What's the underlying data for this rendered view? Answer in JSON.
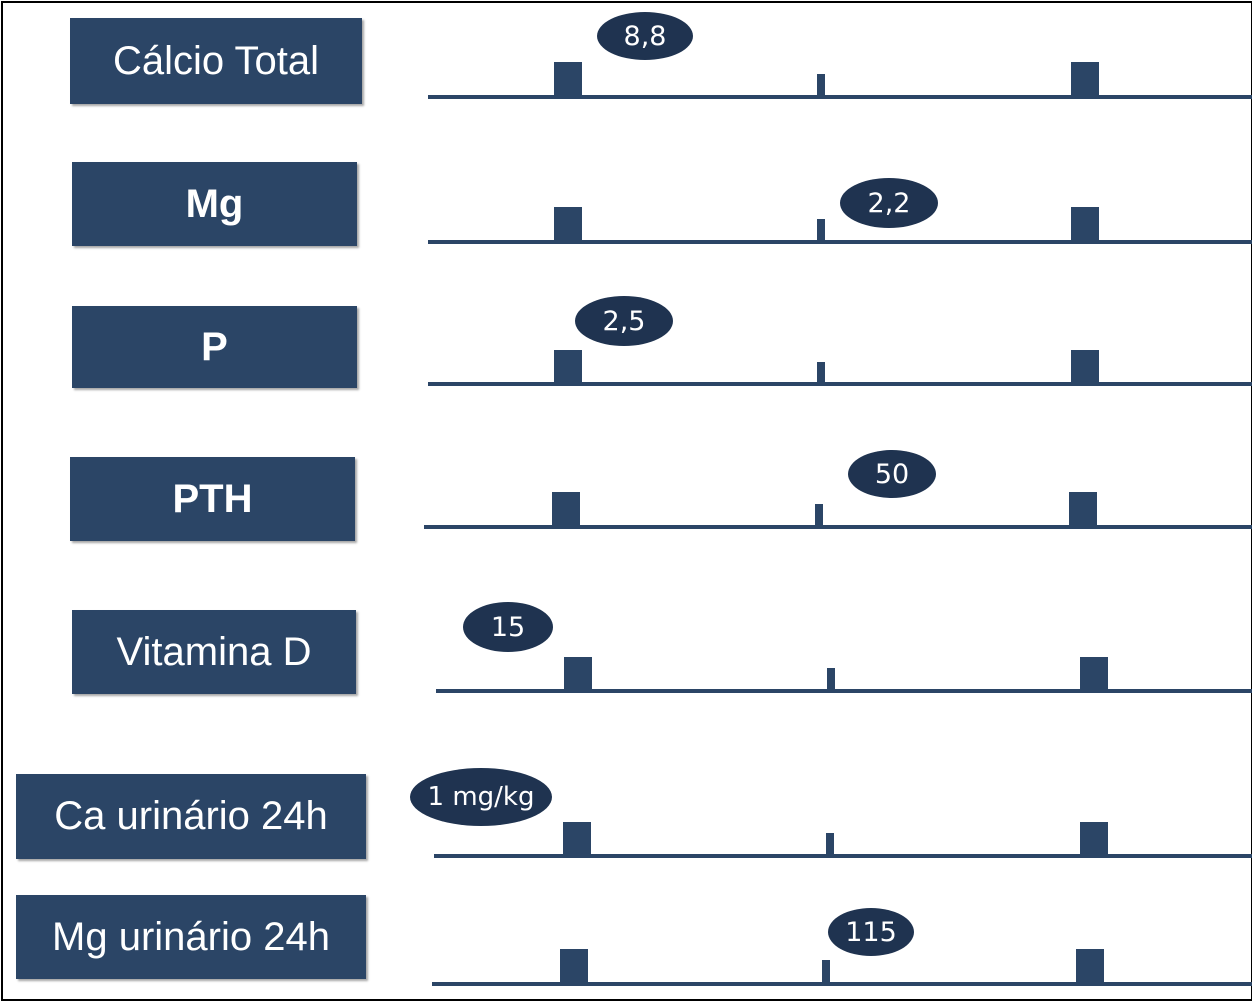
{
  "rows": [
    {
      "label": "Cálcio Total",
      "value": "8,8"
    },
    {
      "label": "Mg",
      "value": "2,2"
    },
    {
      "label": "P",
      "value": "2,5"
    },
    {
      "label": "PTH",
      "value": "50"
    },
    {
      "label": "Vitamina D",
      "value": "15"
    },
    {
      "label": "Ca urinário 24h",
      "value": "1 mg/kg"
    },
    {
      "label": "Mg urinário 24h",
      "value": "115"
    }
  ],
  "colors": {
    "box": "#2b4566",
    "bubble": "#1f3350",
    "text": "#ffffff"
  }
}
